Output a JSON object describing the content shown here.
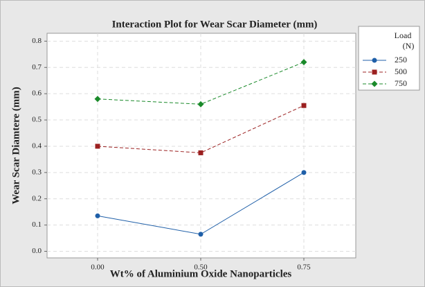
{
  "chart_data": {
    "type": "line",
    "title": "Interaction Plot for Wear Scar Diameter (mm)",
    "x_label": "Wt% of Aluminium Oxide Nanoparticles",
    "y_label": "Wear Scar Diamtere (mm)",
    "legend_title": [
      "Load",
      "(N)"
    ],
    "legend_position": "right",
    "grid": true,
    "categories": [
      "0.00",
      "0.50",
      "0.75"
    ],
    "ylim": [
      -0.025,
      0.83
    ],
    "yticks": [
      {
        "value": 0,
        "label": "0.0"
      },
      0.1,
      0.2,
      0.3,
      0.4,
      0.5,
      0.6,
      0.7,
      0.8
    ],
    "series": [
      {
        "name": "250",
        "color": "#1f5fa8",
        "marker": "circle",
        "dash": false,
        "values": [
          0.135,
          0.065,
          0.3
        ]
      },
      {
        "name": "500",
        "color": "#9b2020",
        "marker": "square",
        "dash": true,
        "values": [
          0.4,
          0.375,
          0.555
        ]
      },
      {
        "name": "750",
        "color": "#1a8a2a",
        "marker": "diamond",
        "dash": true,
        "values": [
          0.58,
          0.56,
          0.72
        ]
      }
    ]
  }
}
